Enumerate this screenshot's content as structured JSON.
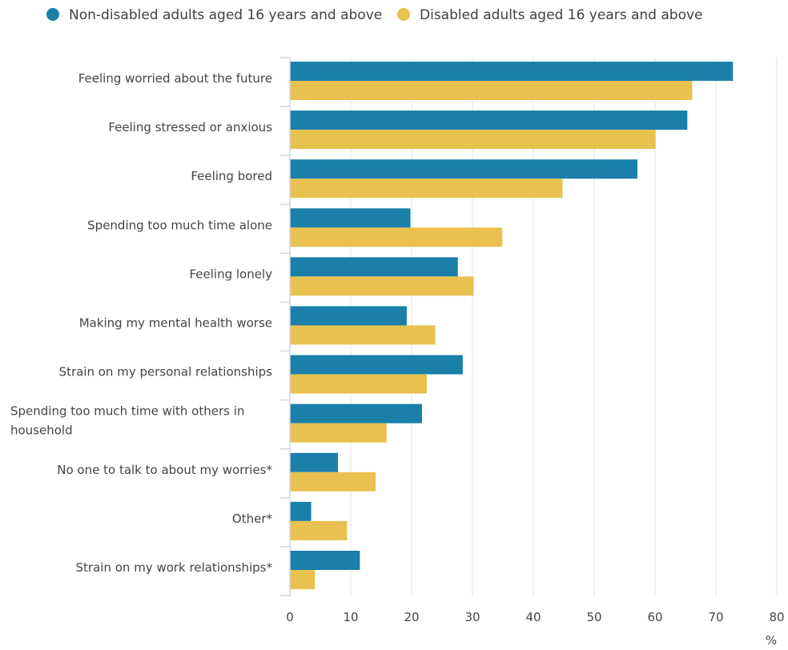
{
  "chart_data": {
    "type": "bar",
    "orientation": "horizontal",
    "categories": [
      [
        "Feeling worried about the future"
      ],
      [
        "Feeling stressed or anxious"
      ],
      [
        "Feeling bored"
      ],
      [
        "Spending too much time alone"
      ],
      [
        "Feeling lonely"
      ],
      [
        "Making my mental health worse"
      ],
      [
        "Strain on my personal relationships"
      ],
      [
        "Spending too much time with others in",
        "household"
      ],
      [
        "No one to talk to about my worries*"
      ],
      [
        "Other*"
      ],
      [
        "Strain on my work relationships*"
      ]
    ],
    "series": [
      {
        "name": "Non-disabled adults aged 16 years and above",
        "color": "#1a80aa",
        "values": [
          72.8,
          65.3,
          57.1,
          19.8,
          27.6,
          19.2,
          28.4,
          21.7,
          7.9,
          3.5,
          11.5
        ]
      },
      {
        "name": "Disabled adults aged 16 years and above",
        "color": "#e8c14e",
        "values": [
          66.1,
          60.1,
          44.8,
          34.9,
          30.2,
          23.9,
          22.5,
          15.9,
          14.1,
          9.4,
          4.1
        ]
      }
    ],
    "xlim": [
      0,
      80
    ],
    "xticks": [
      0,
      10,
      20,
      30,
      40,
      50,
      60,
      70,
      80
    ],
    "xticklabels": [
      "0",
      "10",
      "20",
      "30",
      "40",
      "50",
      "60",
      "70",
      "80"
    ],
    "xunit": "%",
    "grid": true,
    "legend_position": "top-left"
  }
}
